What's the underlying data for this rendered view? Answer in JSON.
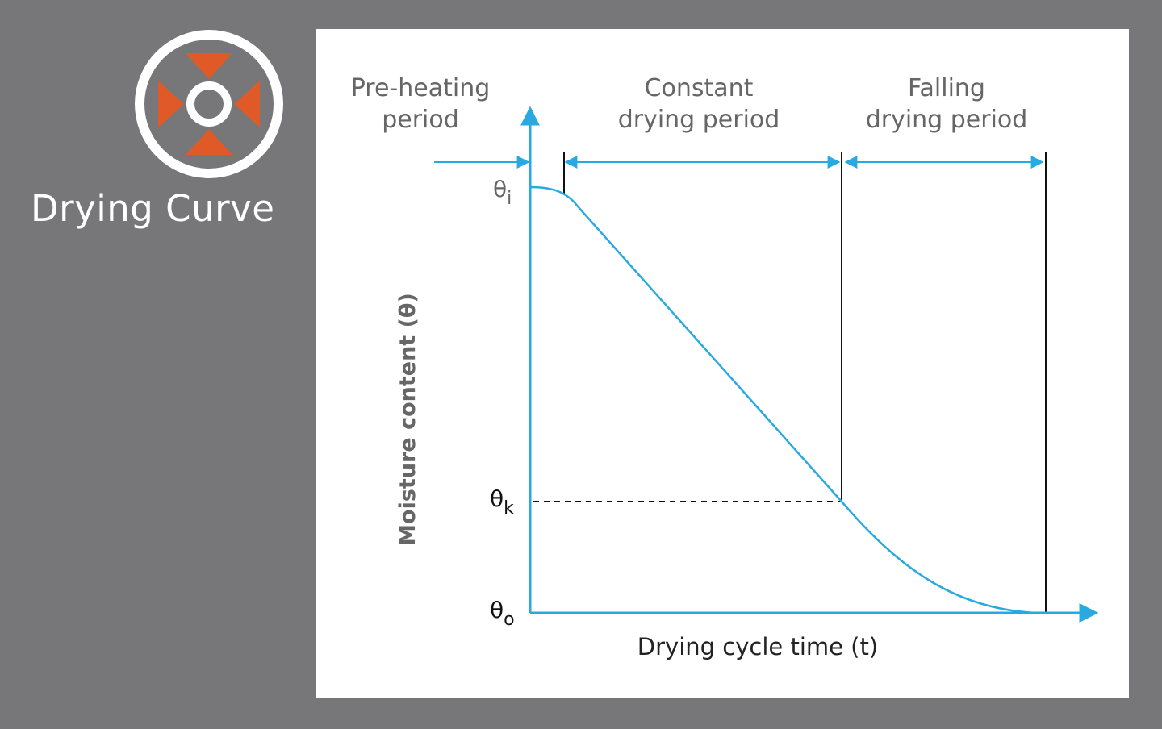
{
  "title": "Drying Curve",
  "colors": {
    "background": "#77777a",
    "panel": "#ffffff",
    "accent_blue": "#29a9e1",
    "logo_orange": "#e05a28",
    "label_gray": "#666666"
  },
  "icons": {
    "logo": "drying-curve-logo-icon"
  },
  "phases": {
    "preheat": {
      "line1": "Pre-heating",
      "line2": "period"
    },
    "constant": {
      "line1": "Constant",
      "line2": "drying period"
    },
    "falling": {
      "line1": "Falling",
      "line2": "drying period"
    }
  },
  "axes": {
    "y_label": "Moisture content (θ)",
    "x_label": "Drying cycle time (t)"
  },
  "levels": {
    "theta_i": {
      "symbol": "θ",
      "sub": "i"
    },
    "theta_k": {
      "symbol": "θ",
      "sub": "k"
    },
    "theta_o": {
      "symbol": "θ",
      "sub": "o"
    }
  }
}
